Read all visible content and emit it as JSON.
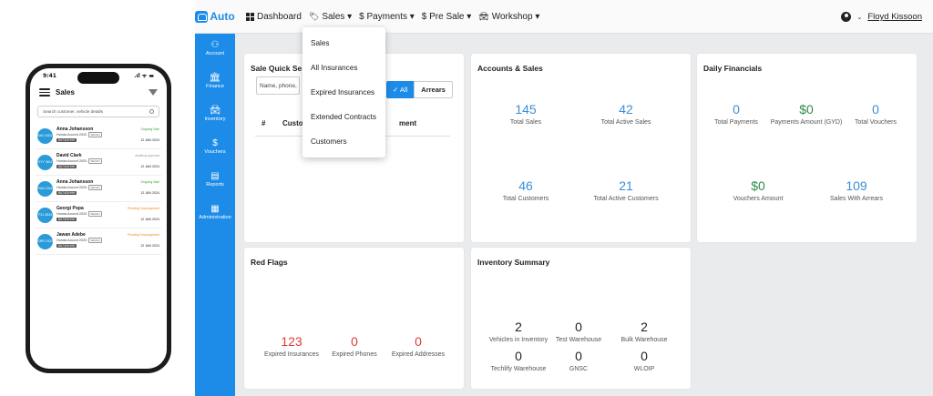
{
  "phone": {
    "time": "9:41",
    "status_icons": ".ıl ᯤ ▬",
    "title": "Sales",
    "search_placeholder": "Search customer, vehicle details",
    "items": [
      {
        "initials": "BAC 6302",
        "name": "Anna Johansson",
        "status": "Ongoing Sale",
        "status_color": "#3aa53a",
        "vehicle": "Honda Accord 2020",
        "vtype": "SEDAN",
        "plate": "BA7401HHH",
        "date": "12 JAN 2024"
      },
      {
        "initials": "GYY 3611",
        "name": "David Clark",
        "status": "Awaiting Approval",
        "status_color": "#999999",
        "vehicle": "Honda Accord 2020",
        "vtype": "SEDAN",
        "plate": "BA7401HHH",
        "date": "12 JAN 2024"
      },
      {
        "initials": "RAA 2344",
        "name": "Anna Johansson",
        "status": "Ongoing Sale",
        "status_color": "#3aa53a",
        "vehicle": "Honda Accord 2020",
        "vtype": "SEDAN",
        "plate": "BA7401HHH",
        "date": "12 JAN 2024"
      },
      {
        "initials": "F31 4543",
        "name": "Georgi Popa",
        "status": "Pending Downpayment",
        "status_color": "#f08a1c",
        "vehicle": "Honda Accord 2020",
        "vtype": "SEDAN",
        "plate": "BA7401HHH",
        "date": "12 JAN 2024"
      },
      {
        "initials": "GRR 2433",
        "name": "Jawan Adebe",
        "status": "Pending Downpayment",
        "status_color": "#f08a1c",
        "vehicle": "Honda Accord 2020",
        "vtype": "SEDAN",
        "plate": "BA7401HHH",
        "date": "12 JAN 2024"
      }
    ]
  },
  "app": {
    "brand": "Auto",
    "accent_color": "#1d8ce8",
    "nav": [
      {
        "label": "Dashboard",
        "icon": "grid-icon"
      },
      {
        "label": "Sales ▾",
        "icon": "tag-icon"
      },
      {
        "label": "$ Payments ▾",
        "icon": ""
      },
      {
        "label": "$ Pre Sale ▾",
        "icon": ""
      },
      {
        "label": "Workshop ▾",
        "icon": "car-icon"
      }
    ],
    "user_name": "Floyd Kissoon",
    "sidebar": [
      {
        "label": "Account",
        "icon": "account-icon"
      },
      {
        "label": "Finance",
        "icon": "bank-icon"
      },
      {
        "label": "Inventory",
        "icon": "car-icon"
      },
      {
        "label": "Vouchers",
        "icon": "dollar-icon"
      },
      {
        "label": "Reports",
        "icon": "file-icon"
      },
      {
        "label": "Administration",
        "icon": "grid-icon"
      }
    ],
    "sales_dropdown": [
      "Sales",
      "All Insurances",
      "Expired Insurances",
      "Extended Contracts",
      "Customers"
    ]
  },
  "quick_search": {
    "title": "Sale Quick Se",
    "input_placeholder": "Name, phone,",
    "all_label": "✓ All",
    "arrears_label": "Arrears",
    "col_hash": "#",
    "col_customer": "Custo",
    "col_payment": "ment"
  },
  "accounts_sales": {
    "title": "Accounts & Sales",
    "stats": [
      {
        "value": "145",
        "label": "Total Sales"
      },
      {
        "value": "42",
        "label": "Total Active Sales"
      },
      {
        "value": "46",
        "label": "Total Customers"
      },
      {
        "value": "21",
        "label": "Total Active Customers"
      }
    ]
  },
  "daily_financials": {
    "title": "Daily Financials",
    "stats": [
      {
        "value": "0",
        "label": "Total Payments"
      },
      {
        "value": "$0",
        "label": "Payments Amount (GYD)"
      },
      {
        "value": "0",
        "label": "Total Vouchers"
      },
      {
        "value": "$0",
        "label": "Vouchers Amount"
      },
      {
        "value": "109",
        "label": "Sales With Arrears"
      }
    ]
  },
  "red_flags": {
    "title": "Red Flags",
    "stats": [
      {
        "value": "123",
        "label": "Expired Insurances"
      },
      {
        "value": "0",
        "label": "Expired Phones"
      },
      {
        "value": "0",
        "label": "Expired Addresses"
      }
    ]
  },
  "inventory": {
    "title": "Inventory Summary",
    "stats": [
      {
        "value": "2",
        "label": "Vehicles in Inventory"
      },
      {
        "value": "0",
        "label": "Test Warehouse"
      },
      {
        "value": "2",
        "label": "Bulk Warehouse"
      },
      {
        "value": "0",
        "label": "Techlify Warehouse"
      },
      {
        "value": "0",
        "label": "GNSC"
      },
      {
        "value": "0",
        "label": "WLOIP"
      }
    ]
  }
}
